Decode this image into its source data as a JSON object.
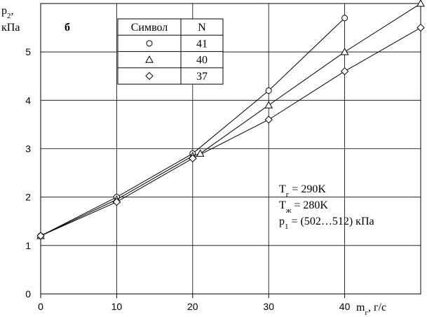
{
  "chart_data": {
    "type": "scatter",
    "panel_label": "б",
    "y_label": [
      "p",
      "2",
      ",",
      "кПа"
    ],
    "x_label": [
      "m",
      "г",
      ", г/с"
    ],
    "xlim": [
      0,
      50
    ],
    "xticks": [
      0,
      10,
      20,
      30,
      40
    ],
    "ylim": [
      0,
      6
    ],
    "yticks": [
      0,
      1,
      2,
      3,
      4,
      5
    ],
    "grid": true,
    "legend_header": [
      "Символ",
      "N"
    ],
    "series": [
      {
        "name": "41",
        "marker": "circle",
        "color": "#000000",
        "x": [
          0,
          10,
          20,
          30,
          40
        ],
        "values": [
          1.2,
          2.0,
          2.9,
          4.2,
          5.7
        ]
      },
      {
        "name": "40",
        "marker": "triangle",
        "color": "#000000",
        "x": [
          0,
          10,
          20,
          21,
          30,
          40,
          50
        ],
        "values": [
          1.2,
          1.95,
          2.85,
          2.9,
          3.9,
          5.0,
          6.0
        ]
      },
      {
        "name": "37",
        "marker": "diamond",
        "color": "#000000",
        "x": [
          0,
          10,
          20,
          30,
          40,
          50
        ],
        "values": [
          1.2,
          1.9,
          2.8,
          3.6,
          4.6,
          5.5
        ]
      }
    ],
    "annotations": [
      [
        "T",
        "г",
        " = 290K"
      ],
      [
        "T",
        "ж",
        " = 280K"
      ],
      [
        "p",
        "1",
        " = (502…512) кПа"
      ]
    ]
  }
}
